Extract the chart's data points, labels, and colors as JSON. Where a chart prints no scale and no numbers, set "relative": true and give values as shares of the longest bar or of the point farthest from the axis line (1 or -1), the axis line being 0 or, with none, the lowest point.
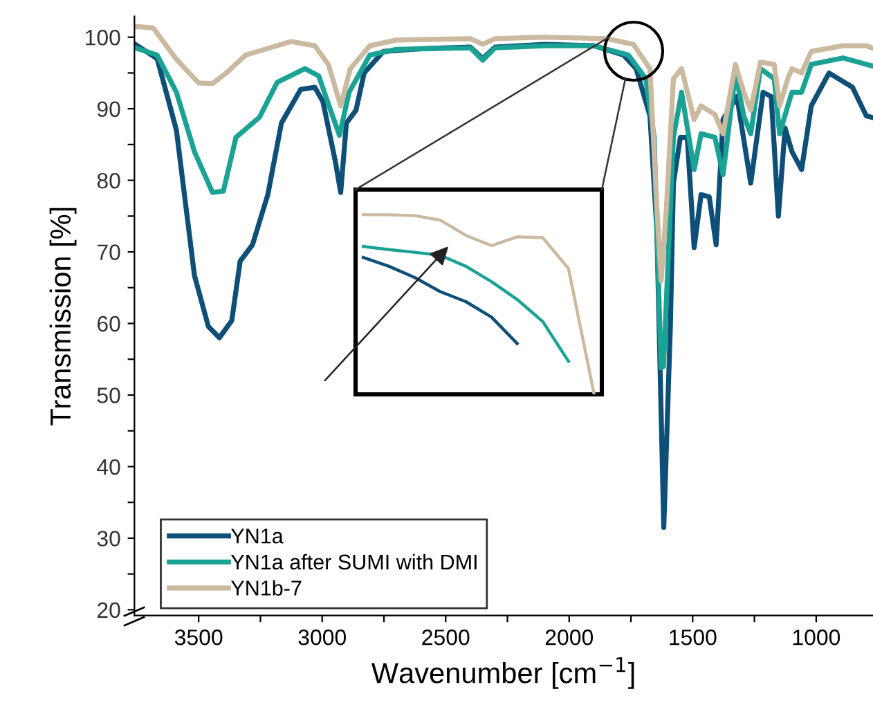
{
  "chart_data": [
    {
      "type": "line",
      "xlabel": "Wavenumber [cm$^{−1}$]",
      "ylabel": "Transmission [%]",
      "xlim": [
        3760,
        770
      ],
      "xticks": [
        3500,
        {
          "value": 3250,
          "label": null
        },
        3000,
        {
          "value": 2750,
          "label": null
        },
        2500,
        {
          "value": 2250,
          "label": null
        },
        2000,
        {
          "value": 1750,
          "label": null
        },
        1500,
        {
          "value": 1250,
          "label": null
        },
        1000
      ],
      "ylim": [
        19.2,
        102.9
      ],
      "yticks": [
        20,
        {
          "value": 25,
          "label": null
        },
        30,
        {
          "value": 35,
          "label": null
        },
        40,
        {
          "value": 45,
          "label": null
        },
        50,
        {
          "value": 55,
          "label": null
        },
        60,
        {
          "value": 65,
          "label": null
        },
        70,
        {
          "value": 75,
          "label": null
        },
        80,
        {
          "value": 85,
          "label": null
        },
        90,
        {
          "value": 95,
          "label": null
        },
        100
      ],
      "legend": "bottom left",
      "grid": false,
      "marker": "none",
      "line_style": "solid",
      "series": [
        {
          "name": "YN1a",
          "color": "#0e4f77",
          "x": [
            3757,
            3668,
            3590,
            3517,
            3461,
            3416,
            3366,
            3332,
            3282,
            3220,
            3165,
            3087,
            3030,
            2997,
            2947,
            2925,
            2902,
            2863,
            2830,
            2752,
            2600,
            2400,
            2350,
            2300,
            2100,
            1900,
            1780,
            1729,
            1673,
            1645,
            1617,
            1590,
            1578,
            1550,
            1522,
            1494,
            1466,
            1433,
            1405,
            1377,
            1321,
            1265,
            1215,
            1182,
            1153,
            1126,
            1098,
            1059,
            1020,
            948,
            853,
            797,
            775
          ],
          "values": [
            99,
            97,
            87,
            66.7,
            59.6,
            58,
            60.4,
            68.7,
            71,
            78,
            88,
            92.7,
            93,
            91,
            82.7,
            78.3,
            88,
            89.8,
            95,
            98,
            98.4,
            98.6,
            97,
            98.6,
            99,
            98.8,
            97.5,
            95.6,
            89,
            73,
            31.5,
            60,
            79.6,
            86,
            86,
            70.6,
            78,
            77.7,
            71,
            88.5,
            91.7,
            79.6,
            92.3,
            91.7,
            75,
            87.3,
            84,
            81.5,
            90.4,
            95,
            93,
            89,
            88.8
          ]
        },
        {
          "name": "YN1a after SUMI with DMI",
          "color": "#1aa394",
          "x": [
            3757,
            3668,
            3590,
            3517,
            3444,
            3400,
            3349,
            3254,
            3182,
            3070,
            3014,
            2958,
            2930,
            2891,
            2807,
            2700,
            2400,
            2350,
            2300,
            2100,
            1900,
            1760,
            1690,
            1656,
            1628,
            1618,
            1578,
            1545,
            1494,
            1466,
            1410,
            1377,
            1327,
            1293,
            1265,
            1226,
            1170,
            1148,
            1115,
            1098,
            1059,
            1020,
            891,
            797,
            775
          ],
          "values": [
            98.5,
            97.5,
            92.3,
            84,
            78.3,
            78.5,
            86,
            88.8,
            93.7,
            95.6,
            94.6,
            89,
            86.3,
            92.3,
            97.5,
            98.3,
            98.5,
            96.8,
            98.5,
            98.8,
            98.8,
            97.5,
            94.2,
            86,
            53.8,
            54,
            86,
            92.3,
            81.5,
            86.5,
            86,
            80.8,
            95,
            89,
            86.5,
            95.6,
            94.2,
            86.5,
            90.4,
            92.3,
            92.3,
            96.2,
            97.1,
            96.2,
            96
          ]
        },
        {
          "name": "YN1b-7",
          "color": "#cbb9a0",
          "x": [
            3757,
            3684,
            3590,
            3500,
            3444,
            3388,
            3310,
            3126,
            3030,
            2975,
            2925,
            2886,
            2807,
            2700,
            2400,
            2350,
            2300,
            2100,
            1850,
            1740,
            1673,
            1645,
            1628,
            1606,
            1578,
            1545,
            1494,
            1466,
            1410,
            1377,
            1327,
            1293,
            1265,
            1226,
            1170,
            1148,
            1115,
            1098,
            1059,
            1020,
            891,
            797,
            775
          ],
          "values": [
            101.5,
            101.3,
            96.9,
            93.6,
            93.5,
            95,
            97.5,
            99.4,
            98.8,
            96.2,
            90.4,
            95.6,
            98.8,
            99.6,
            99.8,
            99,
            99.8,
            100,
            99.8,
            99,
            95.6,
            76.3,
            66,
            76.3,
            94.2,
            95.6,
            88.5,
            90.4,
            89.2,
            86.5,
            96.2,
            92.3,
            89.8,
            96.5,
            96.2,
            90.4,
            94.2,
            95.6,
            95,
            98,
            98.8,
            98.8,
            98.5
          ]
        }
      ]
    },
    {
      "type": "line",
      "relative": true,
      "tick_labels": false,
      "categories": [
        null,
        null,
        null,
        null,
        null,
        null,
        null,
        null,
        null,
        null
      ],
      "series": [
        {
          "color": "#0e4f77",
          "values": [
            0.762,
            0.713,
            0.651,
            0.572,
            0.516,
            0.43,
            0.283,
            null,
            null,
            null
          ]
        },
        {
          "color": "#1aa394",
          "values": [
            0.823,
            0.806,
            0.791,
            0.774,
            0.713,
            0.627,
            0.528,
            0.405,
            0.184,
            null
          ]
        },
        {
          "color": "#cbb9a0",
          "values": [
            1.0,
            1.0,
            0.995,
            0.97,
            0.885,
            0.828,
            0.877,
            0.872,
            0.7,
            0
          ]
        }
      ]
    }
  ]
}
